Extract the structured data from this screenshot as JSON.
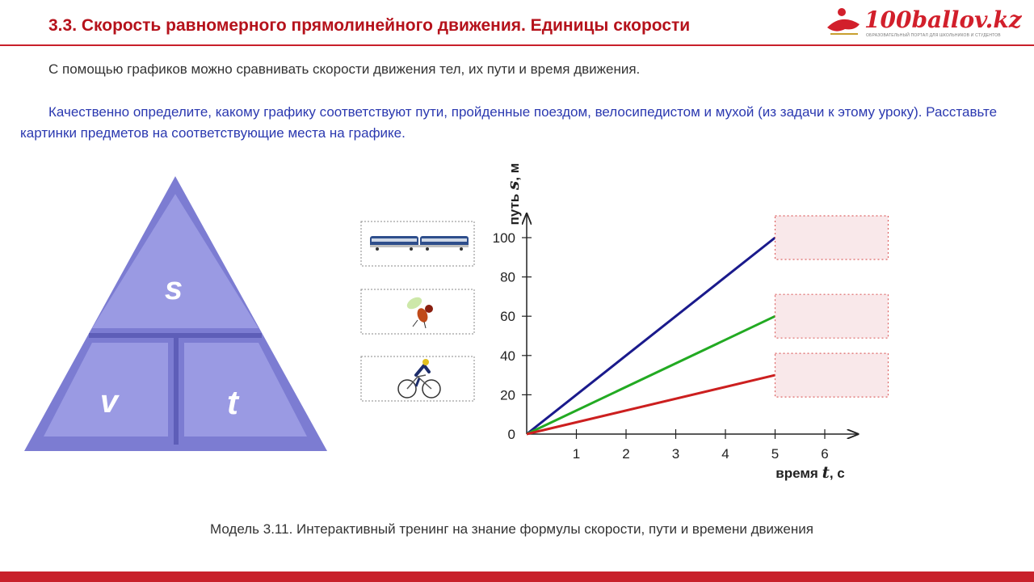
{
  "header": {
    "title": "3.3. Скорость равномерного прямолинейного движения. Единицы скорости",
    "logo_text": "100ballov.kz",
    "logo_subtitle": "ОБРАЗОВАТЕЛЬНЫЙ ПОРТАЛ ДЛЯ ШКОЛЬНИКОВ И СТУДЕНТОВ"
  },
  "intro_text": "С помощью графиков можно сравнивать скорости движения тел, их пути и время движения.",
  "task_text": "Качественно определите, какому графику соответствуют пути, пройденные поездом, велосипедистом и мухой (из задачи к этому уроку). Расставьте картинки предметов на соответствующие места на графике.",
  "triangle": {
    "top": "s",
    "left": "v",
    "right": "t"
  },
  "items": [
    {
      "name": "train",
      "icon": "train-icon"
    },
    {
      "name": "fly",
      "icon": "fly-icon"
    },
    {
      "name": "cyclist",
      "icon": "cyclist-icon"
    }
  ],
  "chart_data": {
    "type": "line",
    "x_ticks": [
      1,
      2,
      3,
      4,
      5,
      6
    ],
    "y_ticks": [
      0,
      20,
      40,
      60,
      80,
      100
    ],
    "xlim": [
      0,
      6.5
    ],
    "ylim": [
      0,
      110
    ],
    "xlabel_prefix": "время ",
    "xlabel_var": "t",
    "xlabel_unit": ", с",
    "ylabel_prefix": "путь ",
    "ylabel_var": "s",
    "ylabel_unit": ", м",
    "series": [
      {
        "color": "#1a1a8c",
        "x": [
          0,
          5
        ],
        "y": [
          0,
          100
        ]
      },
      {
        "color": "#22aa22",
        "x": [
          0,
          5
        ],
        "y": [
          0,
          60
        ]
      },
      {
        "color": "#cc1f1f",
        "x": [
          0,
          5
        ],
        "y": [
          0,
          30
        ]
      }
    ]
  },
  "caption": "Модель 3.11. Интерактивный тренинг на знание формулы скорости, пути и времени движения",
  "colors": {
    "title": "#b5121b",
    "task": "#2b39b0",
    "triangle": "#8f8fdc",
    "drop_border": "#d66"
  }
}
